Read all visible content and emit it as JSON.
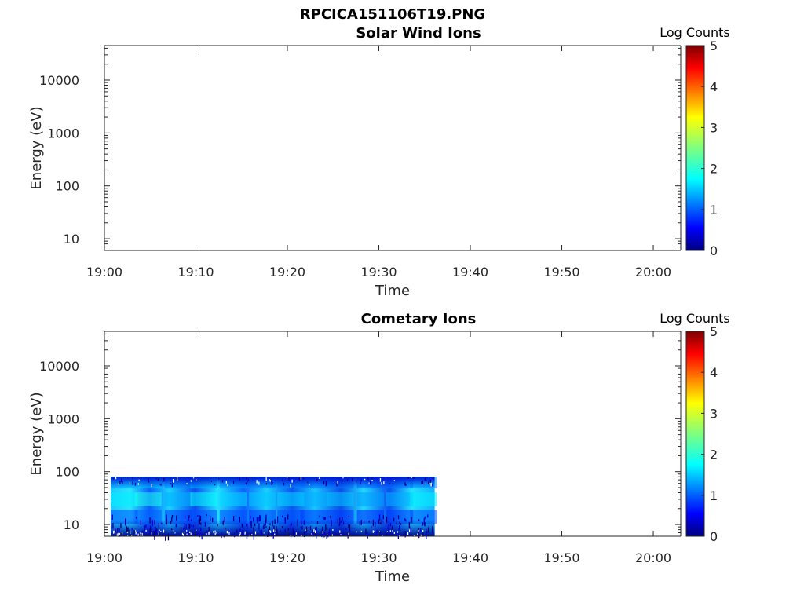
{
  "figure_title": "RPCICA151106T19.PNG",
  "chart_data": [
    {
      "type": "heatmap",
      "title": "Solar Wind Ions",
      "xlabel": "Time",
      "ylabel": "Energy (eV)",
      "x_ticks": [
        "19:00",
        "19:10",
        "19:20",
        "19:30",
        "19:40",
        "19:50",
        "20:00"
      ],
      "x_range_minutes": [
        0,
        63
      ],
      "y_scale": "log",
      "y_ticks": [
        10,
        100,
        1000,
        10000
      ],
      "y_tick_labels": [
        "10",
        "100",
        "1000",
        "10000"
      ],
      "ylim": [
        6,
        45000
      ],
      "colorbar": {
        "label": "Log Counts",
        "range": [
          0,
          5
        ],
        "ticks": [
          "0",
          "1",
          "2",
          "3",
          "4",
          "5"
        ],
        "colormap": "jet"
      },
      "cells": []
    },
    {
      "type": "heatmap",
      "title": "Cometary Ions",
      "xlabel": "Time",
      "ylabel": "Energy (eV)",
      "x_ticks": [
        "19:00",
        "19:10",
        "19:20",
        "19:30",
        "19:40",
        "19:50",
        "20:00"
      ],
      "x_range_minutes": [
        0,
        63
      ],
      "y_scale": "log",
      "y_ticks": [
        10,
        100,
        1000,
        10000
      ],
      "y_tick_labels": [
        "10",
        "100",
        "1000",
        "10000"
      ],
      "ylim": [
        6,
        45000
      ],
      "colorbar": {
        "label": "Log Counts",
        "range": [
          0,
          5
        ],
        "ticks": [
          "0",
          "1",
          "2",
          "3",
          "4",
          "5"
        ],
        "colormap": "jet"
      },
      "data_time_range_minutes": [
        0.7,
        36.1
      ],
      "data_energy_range_eV": [
        6,
        80
      ],
      "cells": [
        [
          0.7,
          65,
          1.4
        ],
        [
          0.7,
          30,
          1.8
        ],
        [
          0.7,
          14,
          1.0
        ],
        [
          3.3,
          65,
          1.6
        ],
        [
          3.3,
          30,
          2.0
        ],
        [
          3.3,
          14,
          1.1
        ],
        [
          6.6,
          65,
          1.3
        ],
        [
          6.6,
          30,
          1.5
        ],
        [
          6.6,
          14,
          0.9
        ],
        [
          9.4,
          65,
          1.5
        ],
        [
          9.4,
          30,
          1.9
        ],
        [
          9.4,
          14,
          1.0
        ],
        [
          12.6,
          65,
          1.4
        ],
        [
          12.6,
          30,
          1.7
        ],
        [
          12.6,
          14,
          1.0
        ],
        [
          15.8,
          65,
          1.3
        ],
        [
          15.8,
          30,
          1.6
        ],
        [
          15.8,
          14,
          0.9
        ],
        [
          18.9,
          65,
          1.3
        ],
        [
          18.9,
          30,
          1.7
        ],
        [
          18.9,
          14,
          1.0
        ],
        [
          21.4,
          65,
          1.2
        ],
        [
          21.4,
          30,
          1.5
        ],
        [
          21.4,
          14,
          0.9
        ],
        [
          24.3,
          65,
          1.2
        ],
        [
          24.3,
          30,
          1.6
        ],
        [
          24.3,
          14,
          0.9
        ],
        [
          27.6,
          65,
          1.1
        ],
        [
          27.6,
          30,
          1.4
        ],
        [
          27.6,
          14,
          0.8
        ],
        [
          30.8,
          65,
          1.2
        ],
        [
          30.8,
          30,
          1.5
        ],
        [
          30.8,
          14,
          0.9
        ],
        [
          33.4,
          65,
          1.3
        ],
        [
          33.4,
          30,
          1.8
        ],
        [
          33.4,
          14,
          1.0
        ]
      ]
    }
  ]
}
